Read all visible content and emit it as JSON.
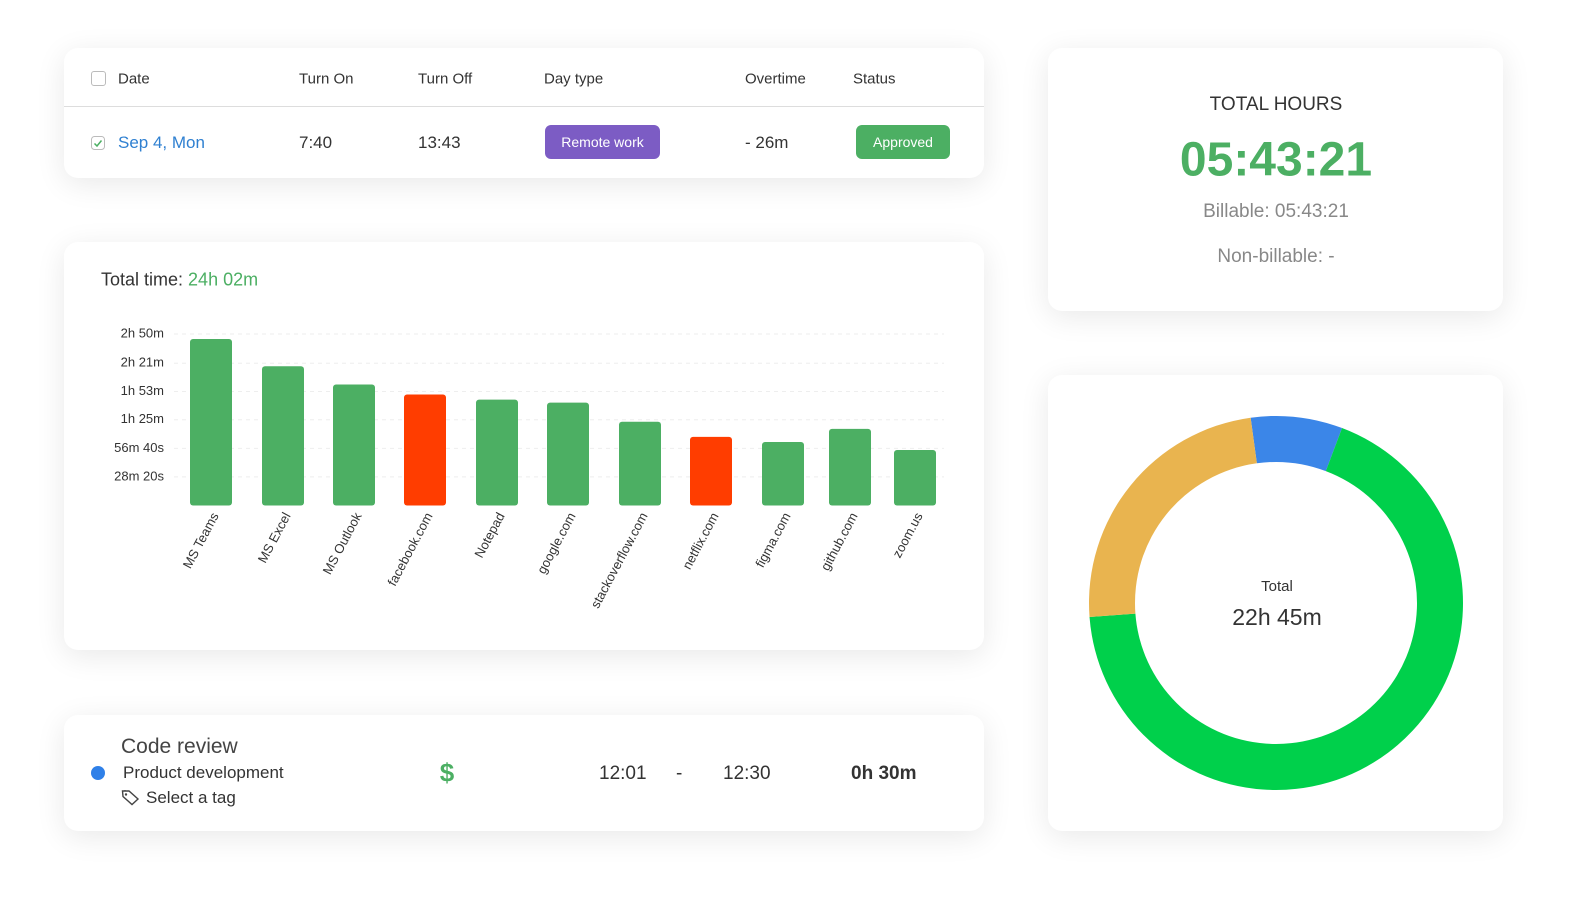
{
  "table": {
    "columns": [
      "Date",
      "Turn On",
      "Turn Off",
      "Day type",
      "Overtime",
      "Status"
    ],
    "rows": [
      [
        "Sep 4, Mon",
        "7:40",
        "13:43",
        "Remote work",
        "- 26m",
        "Approved"
      ]
    ]
  },
  "chart_data": [
    {
      "type": "bar",
      "title": "Total time:",
      "total": "24h 02m",
      "categories": [
        "MS Teams",
        "MS Excel",
        "MS Outlook",
        "facebook.com",
        "Notepad",
        "google.com",
        "stackoverflow.com",
        "netflix.com",
        "figma.com",
        "github.com",
        "zoom.us"
      ],
      "values": [
        165,
        138,
        120,
        110,
        105,
        102,
        83,
        68,
        63,
        76,
        55
      ],
      "colors": [
        "#4caf63",
        "#4caf63",
        "#4caf63",
        "#ff3d00",
        "#4caf63",
        "#4caf63",
        "#4caf63",
        "#ff3d00",
        "#4caf63",
        "#4caf63",
        "#4caf63"
      ],
      "ylim": [
        0,
        170
      ],
      "yticks": [
        {
          "value": 170,
          "label": "2h 50m"
        },
        {
          "value": 141,
          "label": "2h 21m"
        },
        {
          "value": 113,
          "label": "1h 53m"
        },
        {
          "value": 85,
          "label": "1h 25m"
        },
        {
          "value": 56.67,
          "label": "56m 40s"
        },
        {
          "value": 28.33,
          "label": "28m 20s"
        }
      ],
      "grid": true
    },
    {
      "type": "donut",
      "center_label": "Total",
      "center_value": "22h 45m",
      "values": [
        108,
        929,
        328
      ],
      "colors": [
        "#3b86e8",
        "#00d04b",
        "#e9b44f"
      ]
    }
  ],
  "time_entry": {
    "title": "Code review",
    "project": "Product development",
    "tag": "Select a tag",
    "billable": "$",
    "start": "12:01",
    "separator": "-",
    "end": "12:30",
    "duration": "0h 30m"
  },
  "total_hours": {
    "title": "TOTAL HOURS",
    "value": "05:43:21",
    "billable": "Billable: 05:43:21",
    "non_billable": "Non-billable: -"
  }
}
